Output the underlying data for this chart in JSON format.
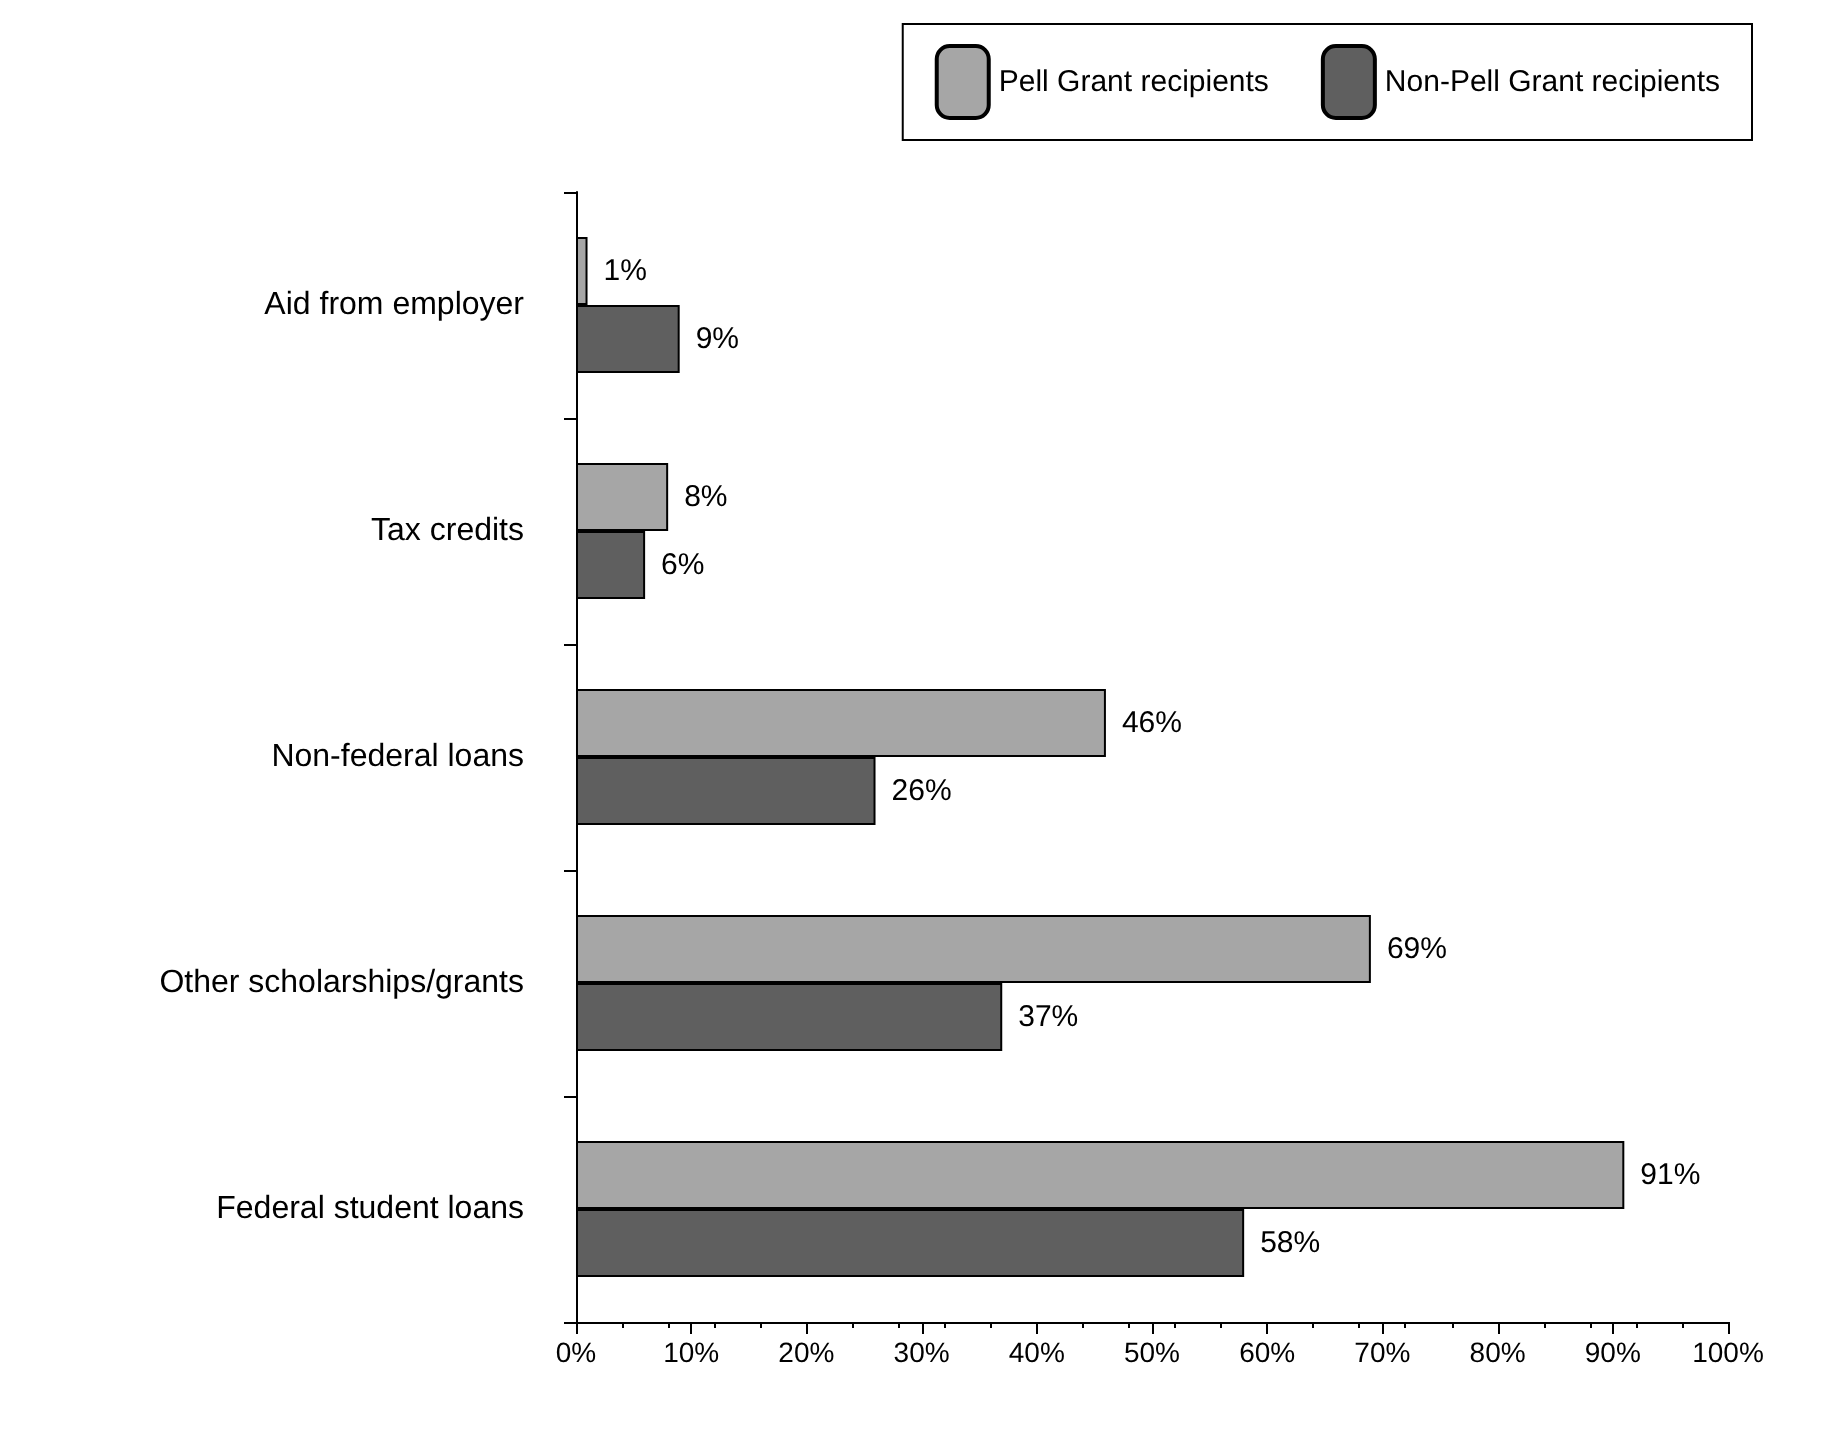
{
  "chart_data": {
    "type": "bar",
    "orientation": "horizontal",
    "categories": [
      "Aid from employer",
      "Tax credits",
      "Non-federal loans",
      "Other scholarships/grants",
      "Federal student loans"
    ],
    "series": [
      {
        "name": "Pell Grant recipients",
        "color": "#a6a6a6",
        "values": [
          1,
          8,
          46,
          69,
          91
        ],
        "value_labels": [
          "1%",
          "8%",
          "46%",
          "69%",
          "91%"
        ]
      },
      {
        "name": "Non-Pell Grant recipients",
        "color": "#5f5f5f",
        "values": [
          9,
          6,
          26,
          37,
          58
        ],
        "value_labels": [
          "9%",
          "6%",
          "26%",
          "37%",
          "58%"
        ]
      }
    ],
    "xlim": [
      0,
      100
    ],
    "xticks": [
      {
        "value": 0,
        "label": "0%"
      },
      {
        "value": 10,
        "label": "10%"
      },
      {
        "value": 20,
        "label": "20%"
      },
      {
        "value": 30,
        "label": "30%"
      },
      {
        "value": 40,
        "label": "40%"
      },
      {
        "value": 50,
        "label": "50%"
      },
      {
        "value": 60,
        "label": "60%"
      },
      {
        "value": 70,
        "label": "70%"
      },
      {
        "value": 80,
        "label": "80%"
      },
      {
        "value": 90,
        "label": "90%"
      },
      {
        "value": 100,
        "label": "100%"
      }
    ],
    "grid": false,
    "legend": "top right"
  }
}
